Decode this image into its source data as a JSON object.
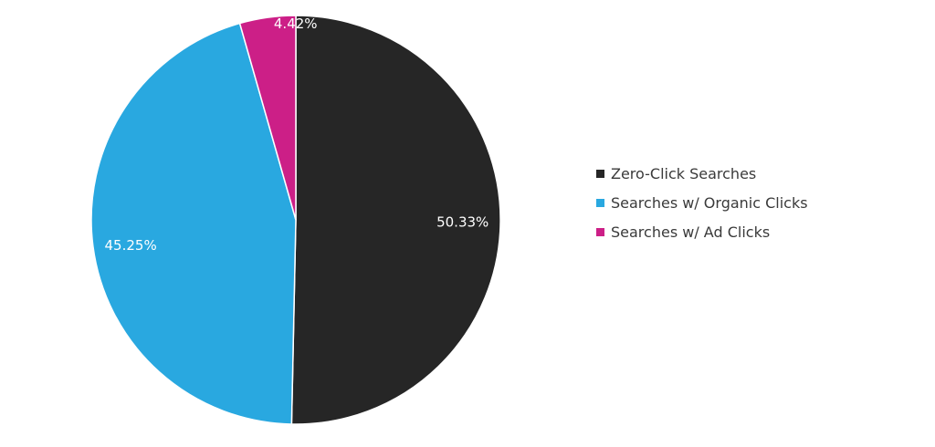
{
  "chart_data": {
    "type": "pie",
    "title": "",
    "slices": [
      {
        "label": "Zero-Click Searches",
        "value": 50.33,
        "display": "50.33%",
        "color": "#262626"
      },
      {
        "label": "Searches w/ Organic Clicks",
        "value": 45.25,
        "display": "45.25%",
        "color": "#29a8e0"
      },
      {
        "label": "Searches w/ Ad Clicks",
        "value": 4.42,
        "display": "4.42%",
        "color": "#cc1f87"
      }
    ],
    "legend": {
      "position": "right",
      "items": [
        {
          "label": "Zero-Click Searches",
          "color": "#262626"
        },
        {
          "label": "Searches w/ Organic Clicks",
          "color": "#29a8e0"
        },
        {
          "label": "Searches w/ Ad Clicks",
          "color": "#cc1f87"
        }
      ]
    }
  }
}
